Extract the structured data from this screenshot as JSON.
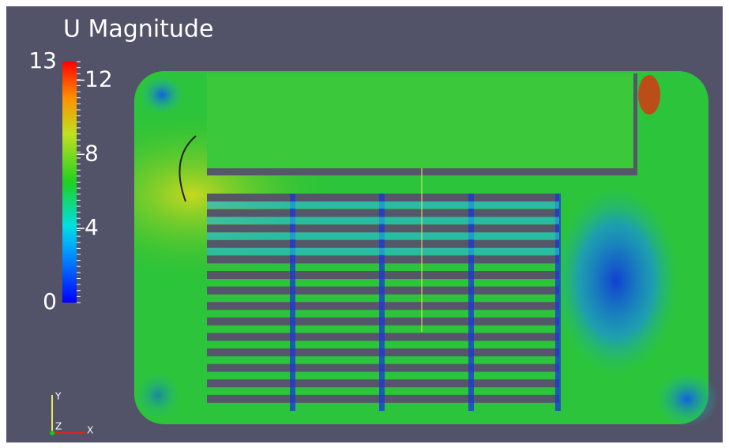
{
  "colorbar": {
    "title": "U Magnitude",
    "min": 0,
    "max": 13,
    "ticks": [
      4,
      8,
      12
    ]
  },
  "axes": {
    "x": "X",
    "y": "Y",
    "z": "Z"
  }
}
